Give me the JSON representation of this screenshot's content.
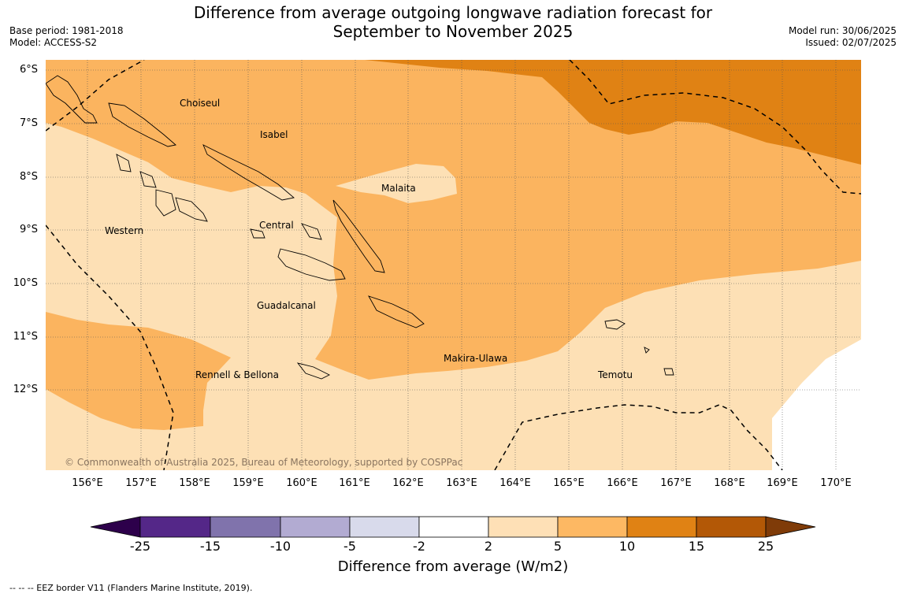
{
  "title": {
    "line1": "Difference from average outgoing longwave radiation forecast for",
    "line2": "September to November 2025"
  },
  "meta_left": {
    "base_period": "Base period: 1981-2018",
    "model": "Model: ACCESS-S2"
  },
  "meta_right": {
    "model_run": "Model run: 30/06/2025",
    "issued": "Issued: 02/07/2025"
  },
  "map": {
    "lat_labels": [
      "6°S",
      "7°S",
      "8°S",
      "9°S",
      "10°S",
      "11°S",
      "12°S"
    ],
    "lon_labels": [
      "156°E",
      "157°E",
      "158°E",
      "159°E",
      "160°E",
      "161°E",
      "162°E",
      "163°E",
      "164°E",
      "165°E",
      "166°E",
      "167°E",
      "168°E",
      "169°E",
      "170°E"
    ],
    "provinces": {
      "choiseul": "Choiseul",
      "isabel": "Isabel",
      "malaita": "Malaita",
      "western": "Western",
      "central": "Central",
      "guadalcanal": "Guadalcanal",
      "makira": "Makira-Ulawa",
      "temotu": "Temotu",
      "rennell": "Rennell & Bellona"
    },
    "copyright": "© Commonwealth of Australia 2025, Bureau of Meteorology, supported by COSPPac",
    "colors": {
      "band_2_5": "#fde0b5",
      "band_5_10": "#fbb45f",
      "band_10_15": "#e08214",
      "band_neutral": "#ffffff"
    }
  },
  "colorbar": {
    "ticks": [
      "-25",
      "-15",
      "-10",
      "-5",
      "-2",
      "2",
      "5",
      "10",
      "15",
      "25"
    ],
    "colors": [
      "#2d004b",
      "#542788",
      "#8073ac",
      "#b2abd2",
      "#d8daeb",
      "#ffffff",
      "#fee0b6",
      "#fdb863",
      "#e08214",
      "#b35806",
      "#7f3b08"
    ],
    "title": "Difference from average (W/m2)"
  },
  "footnote": "--  --  -- EEZ border V11 (Flanders Marine Institute, 2019)."
}
